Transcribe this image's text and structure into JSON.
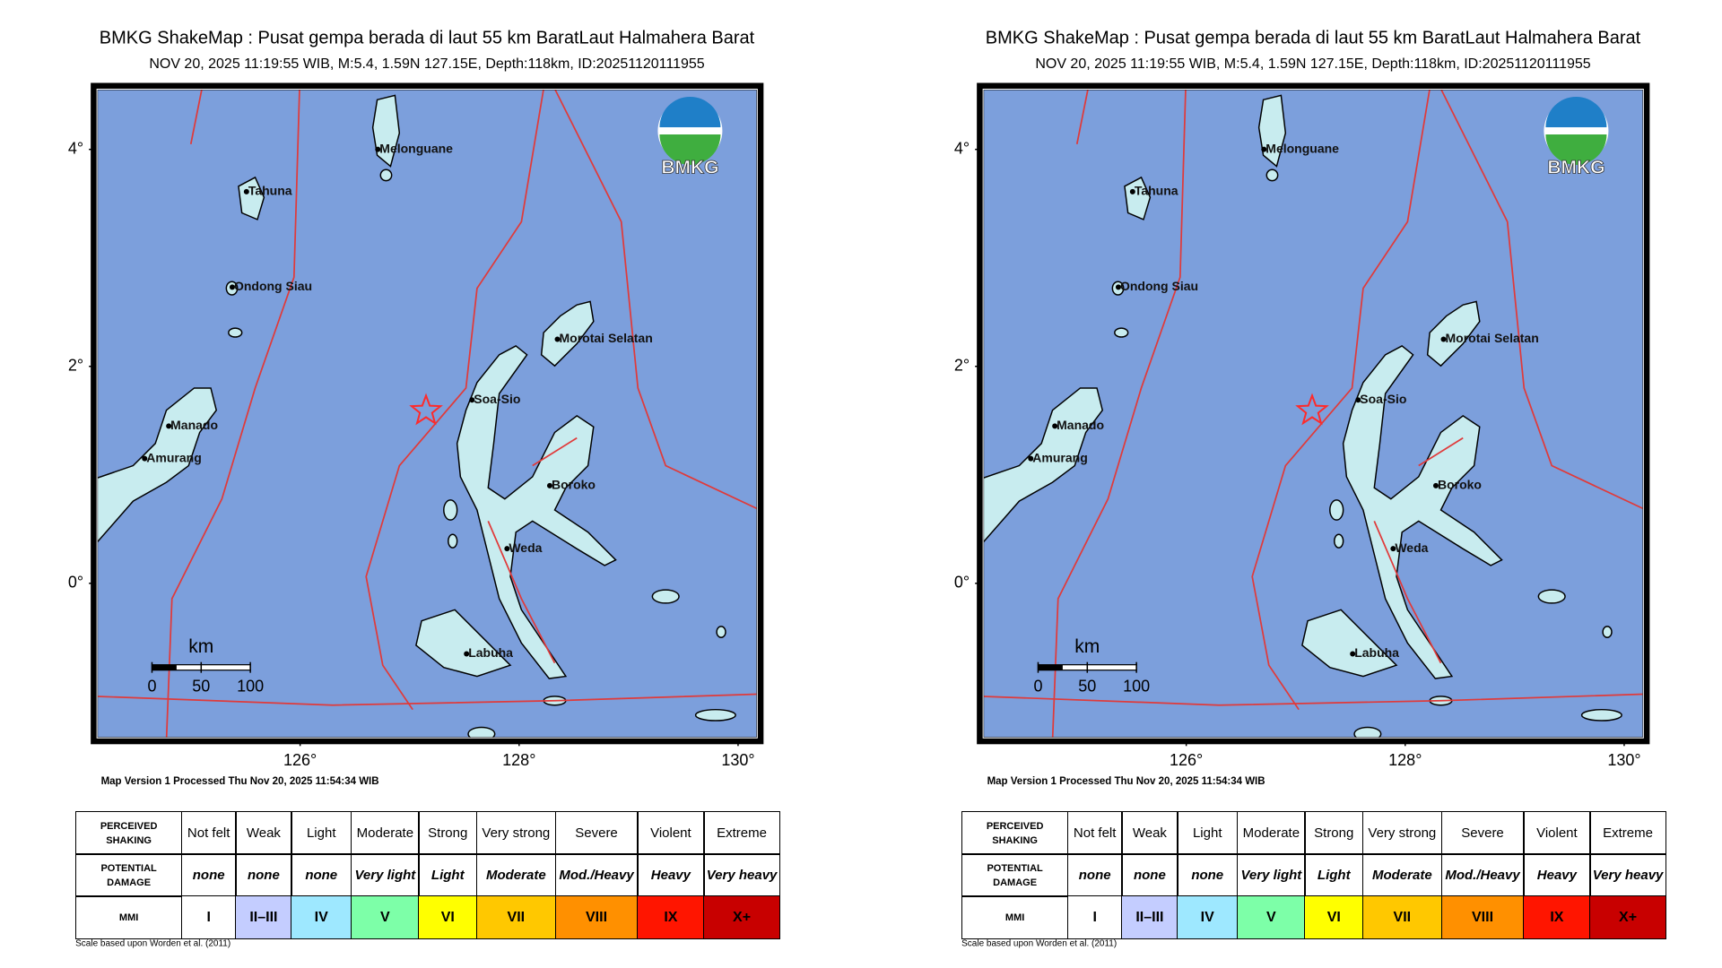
{
  "shakemap": {
    "title": "BMKG ShakeMap : Pusat gempa berada di laut 55 km BaratLaut Halmahera Barat",
    "subtitle": "NOV 20, 2025 11:19:55 WIB, M:5.4, 1.59N 127.15E, Depth:118km, ID:20251120111955",
    "map": {
      "xlim": [
        124.12,
        130.2
      ],
      "ylim": [
        -1.45,
        4.58
      ],
      "xticks": [
        {
          "value": 126,
          "label": "126°"
        },
        {
          "value": 128,
          "label": "128°"
        },
        {
          "value": 130,
          "label": "130°"
        }
      ],
      "yticks": [
        {
          "value": 4,
          "label": "4°"
        },
        {
          "value": 2,
          "label": "2°"
        },
        {
          "value": 0,
          "label": "0°"
        }
      ],
      "logo_text": "BMKG",
      "epicenter": {
        "lon": 127.15,
        "lat": 1.59
      },
      "places": [
        {
          "name": "Melonguane",
          "lon": 126.71,
          "lat": 4.0
        },
        {
          "name": "Tahuna",
          "lon": 125.51,
          "lat": 3.61
        },
        {
          "name": "Ondong Siau",
          "lon": 125.38,
          "lat": 2.73
        },
        {
          "name": "Morotai Selatan",
          "lon": 128.35,
          "lat": 2.25
        },
        {
          "name": "Soa-Sio",
          "lon": 127.57,
          "lat": 1.69
        },
        {
          "name": "Manado",
          "lon": 124.8,
          "lat": 1.45
        },
        {
          "name": "Amurang",
          "lon": 124.58,
          "lat": 1.15
        },
        {
          "name": "Boroko",
          "lon": 128.28,
          "lat": 0.9
        },
        {
          "name": "Weda",
          "lon": 127.89,
          "lat": 0.32
        },
        {
          "name": "Labuha",
          "lon": 127.52,
          "lat": -0.65
        }
      ],
      "scale_bar": {
        "unit": "km",
        "ticks": [
          0,
          50,
          100
        ]
      }
    },
    "processed_note": "Map Version 1 Processed Thu Nov 20, 2025 11:54:34 WIB",
    "legend_table": {
      "row_headers": [
        "PERCEIVED SHAKING",
        "POTENTIAL DAMAGE",
        "MMI"
      ],
      "shaking": [
        "Not felt",
        "Weak",
        "Light",
        "Moderate",
        "Strong",
        "Very strong",
        "Severe",
        "Violent",
        "Extreme"
      ],
      "damage": [
        "none",
        "none",
        "none",
        "Very light",
        "Light",
        "Moderate",
        "Mod./Heavy",
        "Heavy",
        "Very heavy"
      ],
      "mmi": [
        "I",
        "II–III",
        "IV",
        "V",
        "VI",
        "VII",
        "VIII",
        "IX",
        "X+"
      ],
      "colors": [
        "#ffffff",
        "#c4cdff",
        "#9ee8ff",
        "#7dffa8",
        "#ffff00",
        "#ffc800",
        "#ff9000",
        "#ff1500",
        "#c80000"
      ]
    },
    "footnote": "Scale based upon Worden et al. (2011)"
  }
}
